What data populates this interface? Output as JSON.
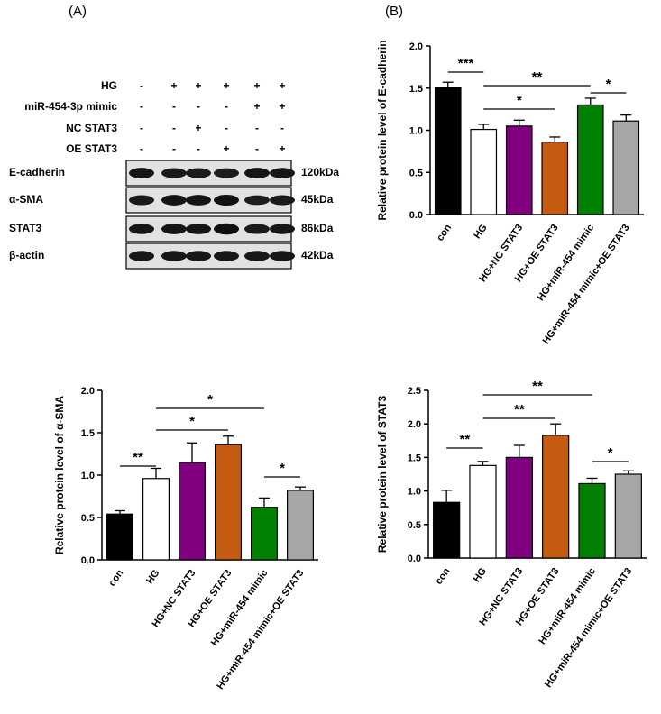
{
  "panel_labels": {
    "a": "(A)",
    "b": "(B)"
  },
  "blot": {
    "treatment_rows": [
      {
        "label": "HG",
        "signs": [
          "-",
          "+",
          "+",
          "+",
          "+",
          "+"
        ]
      },
      {
        "label": "miR-454-3p mimic",
        "signs": [
          "-",
          "-",
          "-",
          "-",
          "+",
          "+"
        ]
      },
      {
        "label": "NC STAT3",
        "signs": [
          "-",
          "-",
          "+",
          "-",
          "-",
          "-"
        ]
      },
      {
        "label": "OE STAT3",
        "signs": [
          "-",
          "-",
          "-",
          "+",
          "-",
          "+"
        ]
      }
    ],
    "bands": [
      {
        "name": "E-cadherin",
        "kda": "120kDa",
        "intensity": [
          0.9,
          0.8,
          0.8,
          0.75,
          0.9,
          0.85
        ]
      },
      {
        "name": "α-SMA",
        "kda": "45kDa",
        "intensity": [
          0.8,
          0.9,
          0.9,
          0.95,
          0.75,
          0.8
        ]
      },
      {
        "name": "STAT3",
        "kda": "86kDa",
        "intensity": [
          0.85,
          0.9,
          0.9,
          1.0,
          0.8,
          0.85
        ]
      },
      {
        "name": "β-actin",
        "kda": "42kDa",
        "intensity": [
          0.85,
          0.85,
          0.85,
          0.85,
          0.85,
          0.85
        ]
      }
    ]
  },
  "bar_colors": [
    "#000000",
    "#ffffff",
    "#800080",
    "#c55a11",
    "#008000",
    "#a6a6a6"
  ],
  "chart_data": [
    {
      "type": "bar",
      "ylabel": "Relative protein level of E-cadherin",
      "ylim": [
        0,
        2.0
      ],
      "yticks": [
        "0.0",
        "0.5",
        "1.0",
        "1.5",
        "2.0"
      ],
      "categories": [
        "con",
        "HG",
        "HG+NC STAT3",
        "HG+OE STAT3",
        "HG+miR-454 mimic",
        "HG+miR-454 mimic+OE STAT3"
      ],
      "values": [
        1.51,
        1.01,
        1.05,
        0.86,
        1.3,
        1.11
      ],
      "errors": [
        0.06,
        0.06,
        0.07,
        0.06,
        0.08,
        0.07
      ],
      "significance": [
        {
          "from": 0,
          "to": 1,
          "label": "***"
        },
        {
          "from": 1,
          "to": 4,
          "label": "**"
        },
        {
          "from": 1,
          "to": 3,
          "label": "*"
        },
        {
          "from": 4,
          "to": 5,
          "label": "*"
        }
      ]
    },
    {
      "type": "bar",
      "ylabel": "Relative protein level of α-SMA",
      "ylim": [
        0,
        2.0
      ],
      "yticks": [
        "0.0",
        "0.5",
        "1.0",
        "1.5",
        "2.0"
      ],
      "categories": [
        "con",
        "HG",
        "HG+NC STAT3",
        "HG+OE STAT3",
        "HG+miR-454 mimic",
        "HG+miR-454 mimic+OE STAT3"
      ],
      "values": [
        0.54,
        0.96,
        1.15,
        1.36,
        0.62,
        0.82
      ],
      "errors": [
        0.04,
        0.12,
        0.23,
        0.1,
        0.11,
        0.04
      ],
      "significance": [
        {
          "from": 0,
          "to": 1,
          "label": "**"
        },
        {
          "from": 1,
          "to": 4,
          "label": "*"
        },
        {
          "from": 1,
          "to": 3,
          "label": "*"
        },
        {
          "from": 4,
          "to": 5,
          "label": "*"
        }
      ]
    },
    {
      "type": "bar",
      "ylabel": "Relative protein level of STAT3",
      "ylim": [
        0,
        2.5
      ],
      "yticks": [
        "0.0",
        "0.5",
        "1.0",
        "1.5",
        "2.0",
        "2.5"
      ],
      "categories": [
        "con",
        "HG",
        "HG+NC STAT3",
        "HG+OE STAT3",
        "HG+miR-454 mimic",
        "HG+miR-454 mimic+OE STAT3"
      ],
      "values": [
        0.83,
        1.38,
        1.5,
        1.83,
        1.11,
        1.25
      ],
      "errors": [
        0.18,
        0.06,
        0.18,
        0.17,
        0.08,
        0.05
      ],
      "significance": [
        {
          "from": 0,
          "to": 1,
          "label": "**"
        },
        {
          "from": 1,
          "to": 4,
          "label": "**"
        },
        {
          "from": 1,
          "to": 3,
          "label": "**"
        },
        {
          "from": 4,
          "to": 5,
          "label": "*"
        }
      ]
    }
  ]
}
